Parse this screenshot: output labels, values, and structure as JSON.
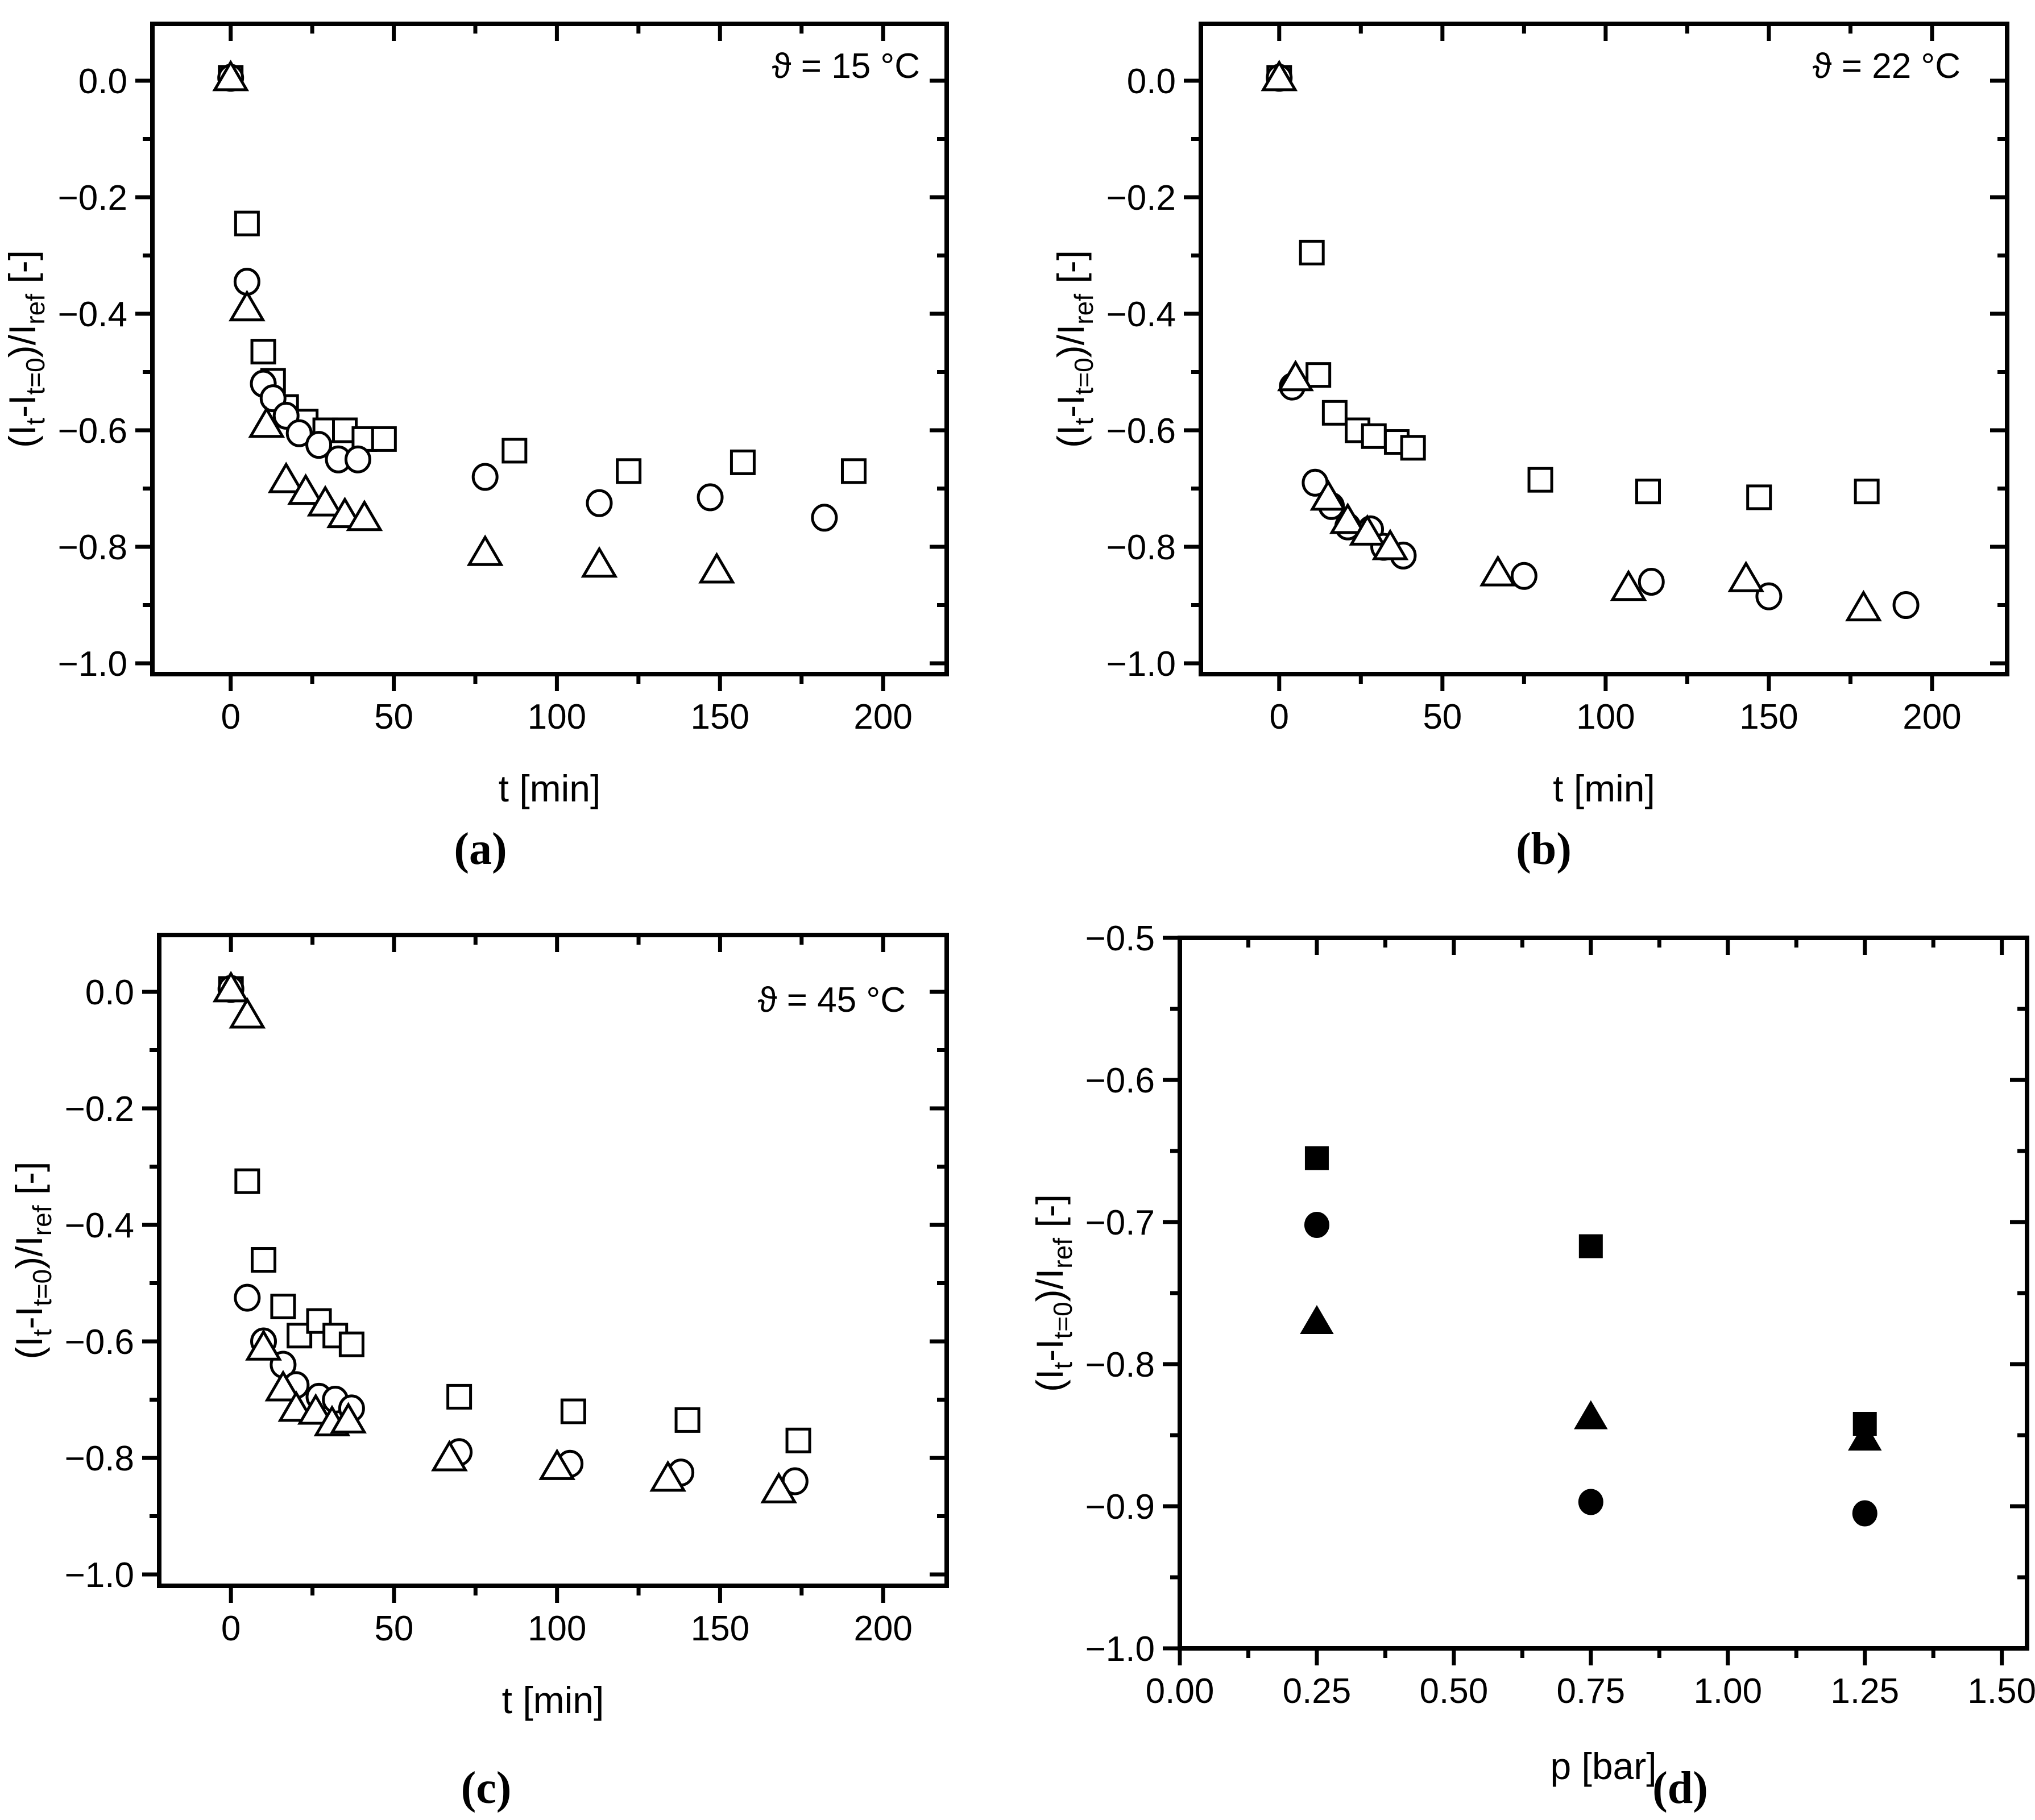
{
  "figure": {
    "background_color": "#ffffff",
    "axis_color": "#000000",
    "marker_color": "#000000",
    "ylabel_parts": [
      {
        "t": "(I",
        "sub": false
      },
      {
        "t": "t",
        "sub": true
      },
      {
        "t": "-I",
        "sub": false
      },
      {
        "t": "t=0",
        "sub": true
      },
      {
        "t": ")/I",
        "sub": false
      },
      {
        "t": "ref",
        "sub": true
      },
      {
        "t": " [-]",
        "sub": false
      }
    ]
  },
  "chart_data": [
    {
      "id": "a",
      "type": "scatter",
      "panel_label": "(a)",
      "annotation": "ϑ = 15 °C",
      "xlabel": "t [min]",
      "ylabel": "(It-It=0)/Iref [-]",
      "xlim": [
        -24,
        219.5
      ],
      "ylim": [
        -1.0185,
        0.0976
      ],
      "xticks": {
        "major": [
          0,
          50,
          100,
          150,
          200
        ],
        "minor": [
          25,
          75,
          125,
          175
        ],
        "labels": [
          "0",
          "50",
          "100",
          "150",
          "200"
        ]
      },
      "yticks": {
        "major": [
          0.0,
          -0.2,
          -0.4,
          -0.6,
          -0.8,
          -1.0
        ],
        "minor": [
          -0.1,
          -0.3,
          -0.5,
          -0.7,
          -0.9
        ],
        "labels": [
          "0.0",
          "−0.2",
          "−0.4",
          "−0.6",
          "−0.8",
          "−1.0"
        ]
      },
      "grid": false,
      "legend": "none",
      "series": [
        {
          "name": "square",
          "marker": "square",
          "fill": "open",
          "points": [
            [
              0,
              0.005
            ],
            [
              5,
              -0.245
            ],
            [
              10,
              -0.465
            ],
            [
              13,
              -0.515
            ],
            [
              17,
              -0.56
            ],
            [
              23,
              -0.585
            ],
            [
              29,
              -0.6
            ],
            [
              35,
              -0.6
            ],
            [
              41,
              -0.615
            ],
            [
              47,
              -0.615
            ],
            [
              87,
              -0.635
            ],
            [
              122,
              -0.67
            ],
            [
              157,
              -0.655
            ],
            [
              191,
              -0.67
            ]
          ]
        },
        {
          "name": "circle",
          "marker": "circle",
          "fill": "open",
          "points": [
            [
              0,
              0.005
            ],
            [
              5,
              -0.345
            ],
            [
              10,
              -0.52
            ],
            [
              13,
              -0.545
            ],
            [
              17,
              -0.575
            ],
            [
              21,
              -0.605
            ],
            [
              27,
              -0.625
            ],
            [
              33,
              -0.65
            ],
            [
              39,
              -0.65
            ],
            [
              78,
              -0.68
            ],
            [
              113,
              -0.725
            ],
            [
              147,
              -0.715
            ],
            [
              182,
              -0.75
            ]
          ]
        },
        {
          "name": "triangle",
          "marker": "triangle",
          "fill": "open",
          "points": [
            [
              0,
              0.005
            ],
            [
              5,
              -0.39
            ],
            [
              11,
              -0.59
            ],
            [
              17,
              -0.685
            ],
            [
              23,
              -0.705
            ],
            [
              29,
              -0.725
            ],
            [
              35,
              -0.745
            ],
            [
              41,
              -0.75
            ],
            [
              78,
              -0.81
            ],
            [
              113,
              -0.83
            ],
            [
              149,
              -0.84
            ]
          ]
        }
      ]
    },
    {
      "id": "b",
      "type": "scatter",
      "panel_label": "(b)",
      "annotation": "ϑ = 22 °C",
      "xlabel": "t [min]",
      "ylabel": "(It-It=0)/Iref [-]",
      "xlim": [
        -24,
        223
      ],
      "ylim": [
        -1.0185,
        0.0976
      ],
      "xticks": {
        "major": [
          0,
          50,
          100,
          150,
          200
        ],
        "minor": [
          25,
          75,
          125,
          175
        ],
        "labels": [
          "0",
          "50",
          "100",
          "150",
          "200"
        ]
      },
      "yticks": {
        "major": [
          0.0,
          -0.2,
          -0.4,
          -0.6,
          -0.8,
          -1.0
        ],
        "minor": [
          -0.1,
          -0.3,
          -0.5,
          -0.7,
          -0.9
        ],
        "labels": [
          "0.0",
          "−0.2",
          "−0.4",
          "−0.6",
          "−0.8",
          "−1.0"
        ]
      },
      "grid": false,
      "legend": "none",
      "series": [
        {
          "name": "square",
          "marker": "square",
          "fill": "open",
          "points": [
            [
              0,
              0.005
            ],
            [
              10,
              -0.295
            ],
            [
              12,
              -0.505
            ],
            [
              17,
              -0.57
            ],
            [
              24,
              -0.6
            ],
            [
              29,
              -0.61
            ],
            [
              36,
              -0.62
            ],
            [
              41,
              -0.63
            ],
            [
              80,
              -0.685
            ],
            [
              113,
              -0.705
            ],
            [
              147,
              -0.715
            ],
            [
              180,
              -0.705
            ]
          ]
        },
        {
          "name": "circle",
          "marker": "circle",
          "fill": "open",
          "points": [
            [
              0,
              0.005
            ],
            [
              4,
              -0.525
            ],
            [
              11,
              -0.69
            ],
            [
              16,
              -0.73
            ],
            [
              21,
              -0.765
            ],
            [
              28,
              -0.77
            ],
            [
              32,
              -0.8
            ],
            [
              38,
              -0.815
            ],
            [
              75,
              -0.85
            ],
            [
              114,
              -0.86
            ],
            [
              150,
              -0.885
            ],
            [
              192,
              -0.9
            ]
          ]
        },
        {
          "name": "triangle",
          "marker": "triangle",
          "fill": "open",
          "points": [
            [
              0,
              0.005
            ],
            [
              5,
              -0.51
            ],
            [
              15,
              -0.715
            ],
            [
              21,
              -0.755
            ],
            [
              27,
              -0.775
            ],
            [
              34,
              -0.8
            ],
            [
              67,
              -0.845
            ],
            [
              107,
              -0.87
            ],
            [
              143,
              -0.855
            ],
            [
              179,
              -0.905
            ]
          ]
        }
      ]
    },
    {
      "id": "c",
      "type": "scatter",
      "panel_label": "(c)",
      "annotation": "ϑ = 45 °C",
      "xlabel": "t [min]",
      "ylabel": "(It-It=0)/Iref [-]",
      "xlim": [
        -22,
        219.5
      ],
      "ylim": [
        -1.0195,
        0.0976
      ],
      "xticks": {
        "major": [
          0,
          50,
          100,
          150,
          200
        ],
        "minor": [
          25,
          75,
          125,
          175
        ],
        "labels": [
          "0",
          "50",
          "100",
          "150",
          "200"
        ]
      },
      "yticks": {
        "major": [
          0.0,
          -0.2,
          -0.4,
          -0.6,
          -0.8,
          -1.0
        ],
        "minor": [
          -0.1,
          -0.3,
          -0.5,
          -0.7,
          -0.9
        ],
        "labels": [
          "0.0",
          "−0.2",
          "−0.4",
          "−0.6",
          "−0.8",
          "−1.0"
        ]
      },
      "grid": false,
      "legend": "none",
      "series": [
        {
          "name": "square",
          "marker": "square",
          "fill": "open",
          "points": [
            [
              0,
              0.005
            ],
            [
              5,
              -0.325
            ],
            [
              10,
              -0.46
            ],
            [
              16,
              -0.54
            ],
            [
              21,
              -0.59
            ],
            [
              27,
              -0.565
            ],
            [
              32,
              -0.59
            ],
            [
              37,
              -0.605
            ],
            [
              70,
              -0.695
            ],
            [
              105,
              -0.72
            ],
            [
              140,
              -0.735
            ],
            [
              174,
              -0.77
            ]
          ]
        },
        {
          "name": "circle",
          "marker": "circle",
          "fill": "open",
          "points": [
            [
              0,
              0.005
            ],
            [
              5,
              -0.525
            ],
            [
              10,
              -0.6
            ],
            [
              16,
              -0.64
            ],
            [
              20,
              -0.675
            ],
            [
              27,
              -0.695
            ],
            [
              32,
              -0.7
            ],
            [
              37,
              -0.715
            ],
            [
              70,
              -0.79
            ],
            [
              104,
              -0.81
            ],
            [
              138,
              -0.825
            ],
            [
              173,
              -0.84
            ]
          ]
        },
        {
          "name": "triangle",
          "marker": "triangle",
          "fill": "open",
          "points": [
            [
              0,
              0.005
            ],
            [
              5,
              -0.04
            ],
            [
              10,
              -0.61
            ],
            [
              16,
              -0.68
            ],
            [
              20,
              -0.715
            ],
            [
              26,
              -0.72
            ],
            [
              31,
              -0.74
            ],
            [
              36,
              -0.735
            ],
            [
              67,
              -0.8
            ],
            [
              100,
              -0.815
            ],
            [
              134,
              -0.835
            ],
            [
              168,
              -0.855
            ]
          ]
        }
      ]
    },
    {
      "id": "d",
      "type": "scatter",
      "panel_label": "(d)",
      "annotation": "",
      "xlabel": "p [bar]",
      "ylabel": "(It-It=0)/Iref [-]",
      "xlim": [
        0,
        1.546
      ],
      "ylim": [
        -1.0,
        -0.5
      ],
      "xticks": {
        "major": [
          0.0,
          0.25,
          0.5,
          0.75,
          1.0,
          1.25,
          1.5
        ],
        "minor": [
          0.125,
          0.375,
          0.625,
          0.875,
          1.125,
          1.375
        ],
        "labels": [
          "0.00",
          "0.25",
          "0.50",
          "0.75",
          "1.00",
          "1.25",
          "1.50"
        ]
      },
      "yticks": {
        "major": [
          -0.5,
          -0.6,
          -0.7,
          -0.8,
          -0.9,
          -1.0
        ],
        "minor": [
          -0.55,
          -0.65,
          -0.75,
          -0.85,
          -0.95
        ],
        "labels": [
          "−0.5",
          "−0.6",
          "−0.7",
          "−0.8",
          "−0.9",
          "−1.0"
        ]
      },
      "grid": false,
      "legend": "none",
      "series": [
        {
          "name": "square",
          "marker": "square",
          "fill": "filled",
          "points": [
            [
              0.25,
              -0.655
            ],
            [
              0.75,
              -0.717
            ],
            [
              1.25,
              -0.842
            ]
          ]
        },
        {
          "name": "circle",
          "marker": "circle",
          "fill": "filled",
          "points": [
            [
              0.25,
              -0.702
            ],
            [
              0.75,
              -0.897
            ],
            [
              1.25,
              -0.905
            ]
          ]
        },
        {
          "name": "triangle",
          "marker": "triangle",
          "fill": "filled",
          "points": [
            [
              0.25,
              -0.77
            ],
            [
              0.75,
              -0.837
            ],
            [
              1.25,
              -0.852
            ]
          ]
        }
      ]
    }
  ]
}
